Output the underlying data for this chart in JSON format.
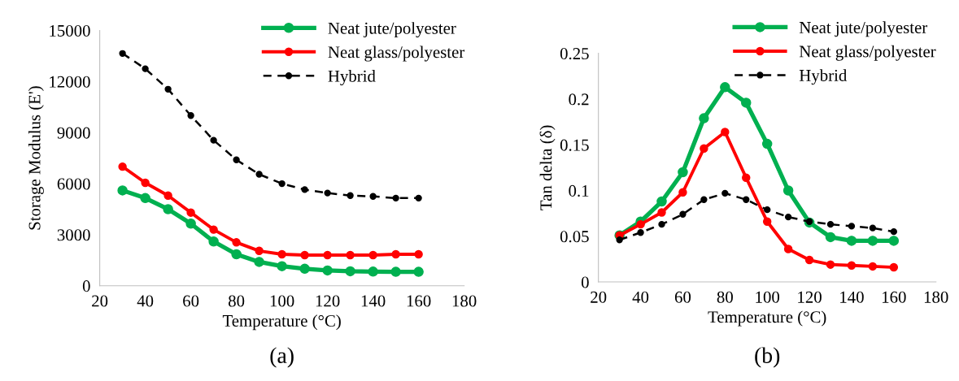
{
  "chart_data": [
    {
      "type": "line",
      "xlabel": "Temperature (°C)",
      "ylabel": "Storage Modulus (E')",
      "annotations": [
        "(a)"
      ],
      "x": [
        30,
        40,
        50,
        60,
        70,
        80,
        90,
        100,
        110,
        120,
        130,
        140,
        150,
        160
      ],
      "xlim": [
        20,
        180
      ],
      "xticks": [
        20,
        40,
        60,
        80,
        100,
        120,
        140,
        160,
        180
      ],
      "ylim": [
        0,
        15000
      ],
      "yticks": [
        0,
        3000,
        6000,
        9000,
        12000,
        15000
      ],
      "grid": false,
      "legend": "top right",
      "marker": "circle",
      "series": [
        {
          "name": "Neat jute/polyester",
          "color": "#00b050",
          "line_style": "solid",
          "values": [
            5600,
            5150,
            4500,
            3650,
            2600,
            1850,
            1400,
            1150,
            1000,
            900,
            850,
            830,
            820,
            820
          ]
        },
        {
          "name": "Neat glass/polyester",
          "color": "#ff0000",
          "line_style": "solid",
          "values": [
            7000,
            6050,
            5300,
            4300,
            3300,
            2550,
            2050,
            1850,
            1800,
            1800,
            1800,
            1800,
            1850,
            1850
          ]
        },
        {
          "name": "Hybrid",
          "color": "#000000",
          "line_style": "dashed",
          "values": [
            13650,
            12750,
            11550,
            10000,
            8550,
            7400,
            6550,
            6000,
            5650,
            5450,
            5300,
            5250,
            5150,
            5150
          ]
        }
      ]
    },
    {
      "type": "line",
      "xlabel": "Temperature (°C)",
      "ylabel": "Tan delta (δ)",
      "annotations": [
        "(b)"
      ],
      "x": [
        30,
        40,
        50,
        60,
        70,
        80,
        90,
        100,
        110,
        120,
        130,
        140,
        150,
        160
      ],
      "xlim": [
        20,
        180
      ],
      "xticks": [
        20,
        40,
        60,
        80,
        100,
        120,
        140,
        160,
        180
      ],
      "ylim": [
        0,
        0.25
      ],
      "yticks": [
        0,
        0.05,
        0.1,
        0.15,
        0.2,
        0.25
      ],
      "grid": false,
      "legend": "top right",
      "marker": "circle",
      "series": [
        {
          "name": "Neat jute/polyester",
          "color": "#00b050",
          "line_style": "solid",
          "values": [
            0.051,
            0.066,
            0.088,
            0.12,
            0.179,
            0.213,
            0.196,
            0.151,
            0.1,
            0.065,
            0.049,
            0.045,
            0.045,
            0.045
          ]
        },
        {
          "name": "Neat glass/polyester",
          "color": "#ff0000",
          "line_style": "solid",
          "values": [
            0.051,
            0.063,
            0.076,
            0.098,
            0.146,
            0.164,
            0.114,
            0.066,
            0.036,
            0.024,
            0.019,
            0.018,
            0.017,
            0.016
          ]
        },
        {
          "name": "Hybrid",
          "color": "#000000",
          "line_style": "dashed",
          "values": [
            0.046,
            0.054,
            0.063,
            0.074,
            0.09,
            0.097,
            0.09,
            0.079,
            0.071,
            0.066,
            0.063,
            0.061,
            0.059,
            0.055
          ]
        }
      ]
    }
  ]
}
